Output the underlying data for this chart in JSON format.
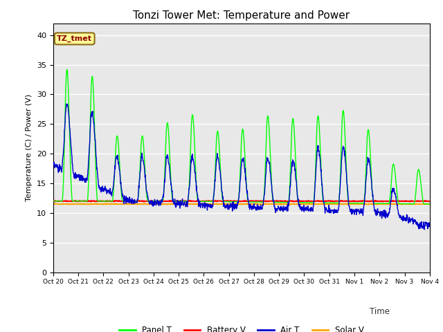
{
  "title": "Tonzi Tower Met: Temperature and Power",
  "ylabel": "Temperature (C) / Power (V)",
  "xlabel": "Time",
  "annotation": "TZ_tmet",
  "ylim": [
    0,
    42
  ],
  "yticks": [
    0,
    5,
    10,
    15,
    20,
    25,
    30,
    35,
    40
  ],
  "xtick_labels": [
    "Oct 20",
    "Oct 21",
    "Oct 22",
    "Oct 23",
    "Oct 24",
    "Oct 25",
    "Oct 26",
    "Oct 27",
    "Oct 28",
    "Oct 29",
    "Oct 30",
    "Oct 31",
    "Nov 1",
    "Nov 2",
    "Nov 3",
    "Nov 4"
  ],
  "colors": {
    "panel_t": "#00FF00",
    "battery_v": "#FF0000",
    "air_t": "#0000CC",
    "solar_v": "#FFA500"
  },
  "background_color": "#E8E8E8",
  "title_fontsize": 11,
  "legend_labels": [
    "Panel T",
    "Battery V",
    "Air T",
    "Solar V"
  ]
}
